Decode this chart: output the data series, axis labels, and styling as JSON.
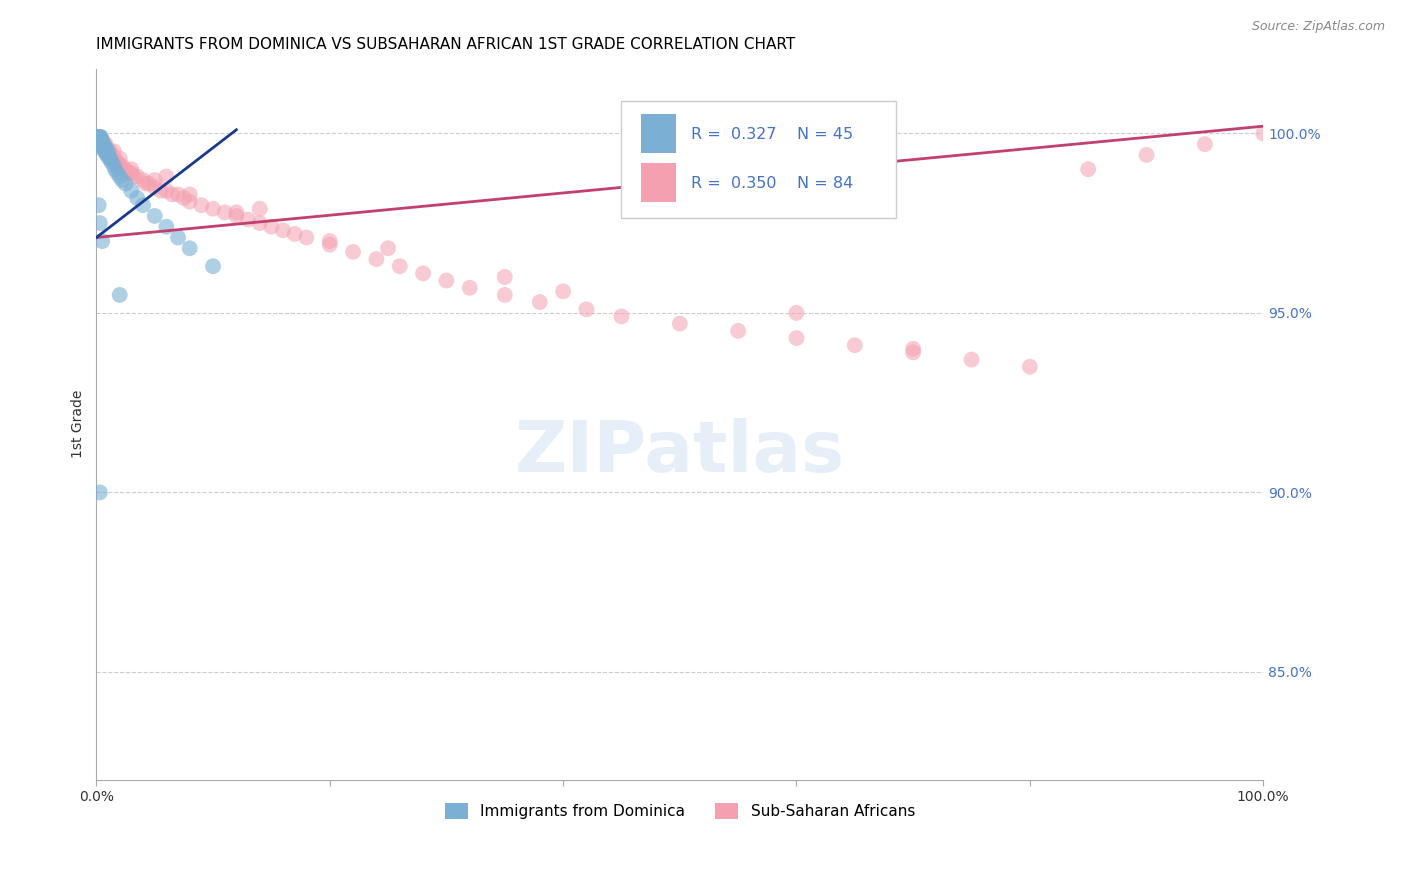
{
  "title": "IMMIGRANTS FROM DOMINICA VS SUBSAHARAN AFRICAN 1ST GRADE CORRELATION CHART",
  "source": "Source: ZipAtlas.com",
  "ylabel": "1st Grade",
  "R1": 0.327,
  "N1": 45,
  "R2": 0.35,
  "N2": 84,
  "blue_color": "#7BAFD4",
  "pink_color": "#F4A0B0",
  "blue_line_color": "#1A3A8C",
  "pink_line_color": "#C04070",
  "xlim": [
    0.0,
    1.0
  ],
  "ylim": [
    0.82,
    1.018
  ],
  "ytick_values": [
    1.0,
    0.95,
    0.9,
    0.85
  ],
  "ytick_labels": [
    "100.0%",
    "95.0%",
    "90.0%",
    "85.0%"
  ],
  "right_axis_color": "#4472C4",
  "background_color": "#ffffff",
  "grid_color": "#cccccc",
  "watermark_text": "ZIPatlas",
  "legend_label1": "Immigrants from Dominica",
  "legend_label2": "Sub-Saharan Africans",
  "blue_scatter_x": [
    0.001,
    0.001,
    0.002,
    0.002,
    0.002,
    0.003,
    0.003,
    0.003,
    0.004,
    0.004,
    0.004,
    0.005,
    0.005,
    0.005,
    0.006,
    0.006,
    0.007,
    0.007,
    0.008,
    0.008,
    0.009,
    0.01,
    0.01,
    0.011,
    0.012,
    0.013,
    0.015,
    0.016,
    0.018,
    0.02,
    0.022,
    0.025,
    0.03,
    0.035,
    0.04,
    0.05,
    0.06,
    0.07,
    0.08,
    0.1,
    0.002,
    0.003,
    0.005,
    0.02,
    0.003
  ],
  "blue_scatter_y": [
    0.999,
    0.998,
    0.999,
    0.998,
    0.997,
    0.999,
    0.998,
    0.997,
    0.999,
    0.998,
    0.997,
    0.998,
    0.997,
    0.996,
    0.997,
    0.996,
    0.996,
    0.995,
    0.996,
    0.995,
    0.994,
    0.995,
    0.994,
    0.993,
    0.993,
    0.992,
    0.991,
    0.99,
    0.989,
    0.988,
    0.987,
    0.986,
    0.984,
    0.982,
    0.98,
    0.977,
    0.974,
    0.971,
    0.968,
    0.963,
    0.98,
    0.975,
    0.97,
    0.955,
    0.9
  ],
  "pink_scatter_x": [
    0.002,
    0.003,
    0.004,
    0.005,
    0.006,
    0.007,
    0.008,
    0.009,
    0.01,
    0.011,
    0.012,
    0.013,
    0.015,
    0.017,
    0.018,
    0.02,
    0.022,
    0.025,
    0.028,
    0.03,
    0.032,
    0.035,
    0.04,
    0.042,
    0.045,
    0.05,
    0.055,
    0.06,
    0.065,
    0.07,
    0.075,
    0.08,
    0.09,
    0.1,
    0.11,
    0.12,
    0.13,
    0.14,
    0.15,
    0.16,
    0.17,
    0.18,
    0.2,
    0.22,
    0.24,
    0.26,
    0.28,
    0.3,
    0.32,
    0.35,
    0.38,
    0.42,
    0.45,
    0.5,
    0.55,
    0.6,
    0.65,
    0.7,
    0.75,
    0.8,
    0.85,
    0.9,
    0.95,
    1.0,
    0.003,
    0.005,
    0.008,
    0.012,
    0.02,
    0.03,
    0.05,
    0.08,
    0.12,
    0.2,
    0.35,
    0.6,
    0.004,
    0.007,
    0.015,
    0.06,
    0.14,
    0.25,
    0.4,
    0.7
  ],
  "pink_scatter_y": [
    0.999,
    0.998,
    0.998,
    0.997,
    0.997,
    0.996,
    0.996,
    0.995,
    0.995,
    0.994,
    0.994,
    0.993,
    0.993,
    0.992,
    0.992,
    0.991,
    0.991,
    0.99,
    0.989,
    0.989,
    0.988,
    0.988,
    0.987,
    0.986,
    0.986,
    0.985,
    0.984,
    0.984,
    0.983,
    0.983,
    0.982,
    0.981,
    0.98,
    0.979,
    0.978,
    0.977,
    0.976,
    0.975,
    0.974,
    0.973,
    0.972,
    0.971,
    0.969,
    0.967,
    0.965,
    0.963,
    0.961,
    0.959,
    0.957,
    0.955,
    0.953,
    0.951,
    0.949,
    0.947,
    0.945,
    0.943,
    0.941,
    0.939,
    0.937,
    0.935,
    0.99,
    0.994,
    0.997,
    1.0,
    0.999,
    0.998,
    0.997,
    0.995,
    0.993,
    0.99,
    0.987,
    0.983,
    0.978,
    0.97,
    0.96,
    0.95,
    0.998,
    0.997,
    0.995,
    0.988,
    0.979,
    0.968,
    0.956,
    0.94
  ],
  "blue_line_x": [
    0.0,
    0.12
  ],
  "blue_line_y": [
    0.971,
    1.001
  ],
  "pink_line_x": [
    0.0,
    1.0
  ],
  "pink_line_y": [
    0.971,
    1.002
  ]
}
